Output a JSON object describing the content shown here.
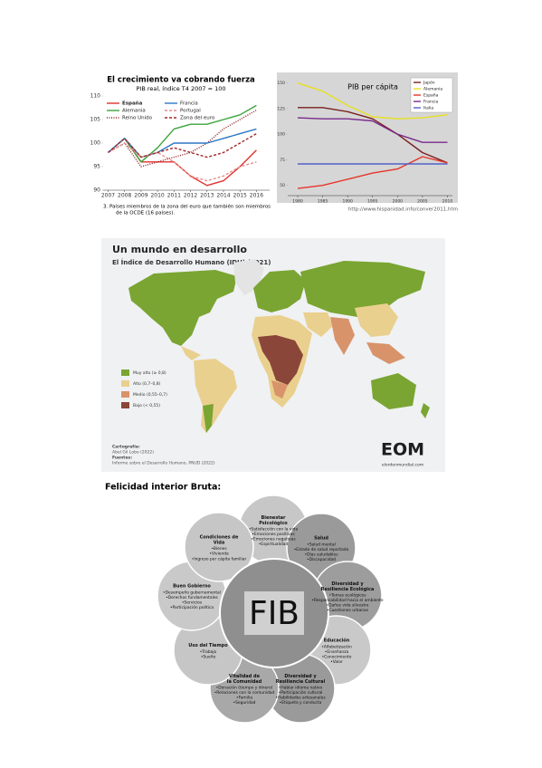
{
  "chart_data": [
    {
      "type": "line",
      "title": "El crecimiento va cobrando fuerza",
      "subtitle": "PIB real, índice T4 2007 = 100",
      "x": [
        2007,
        2008,
        2009,
        2010,
        2011,
        2012,
        2013,
        2014,
        2015,
        2016
      ],
      "xlim": [
        2006.7,
        2016.8
      ],
      "xticks": [
        2007,
        2008,
        2009,
        2010,
        2011,
        2012,
        2013,
        2014,
        2015,
        2016
      ],
      "ylim": [
        90,
        110
      ],
      "yticks": [
        90,
        95,
        100,
        105,
        110
      ],
      "grid": false,
      "series": [
        {
          "name": "España",
          "color": "#e0312e",
          "style": "solid",
          "values": [
            98,
            101,
            96,
            96,
            96,
            93,
            91,
            92,
            95,
            98.5
          ]
        },
        {
          "name": "Alemania",
          "color": "#3aa43a",
          "style": "solid",
          "values": [
            98,
            101,
            96,
            99,
            103,
            104,
            104,
            105,
            106,
            108
          ]
        },
        {
          "name": "Reino Unido",
          "color": "#8b1a1a",
          "style": "dotted",
          "values": [
            98,
            100,
            95,
            96,
            97,
            98,
            100,
            103,
            105,
            107
          ]
        },
        {
          "name": "Francia",
          "color": "#2b77c4",
          "style": "solid",
          "values": [
            98,
            101,
            97,
            98,
            100,
            100,
            100,
            101,
            102,
            103
          ]
        },
        {
          "name": "Portugal",
          "color": "#e88a8a",
          "style": "dashed",
          "values": [
            98,
            100,
            97,
            98,
            96,
            93,
            92,
            93,
            95,
            96
          ]
        },
        {
          "name": "Zona del euro",
          "color": "#a02828",
          "style": "dashed",
          "values": [
            98,
            101,
            97,
            98,
            99,
            98,
            97,
            98,
            100,
            102
          ]
        }
      ],
      "note": [
        "3.  Países miembros de la zona del euro que también son miembros",
        "de la OCDE (16 países)."
      ]
    },
    {
      "type": "line",
      "title": "PIB per cápita",
      "x": [
        1980,
        1985,
        1990,
        1995,
        2000,
        2005,
        2010
      ],
      "xlim": [
        1978,
        2011
      ],
      "xticks": [
        1980,
        1985,
        1990,
        1995,
        2000,
        2005,
        2010
      ],
      "ylim": [
        40,
        155
      ],
      "yticks": [
        50,
        75,
        100,
        125,
        150
      ],
      "grid": false,
      "series": [
        {
          "name": "Japón",
          "color": "#7a1f1f",
          "style": "solid",
          "values": [
            126,
            126,
            122,
            115,
            100,
            82,
            72
          ]
        },
        {
          "name": "Alemania",
          "color": "#e8e020",
          "style": "solid",
          "values": [
            150,
            142,
            128,
            117,
            115,
            116,
            119
          ]
        },
        {
          "name": "España",
          "color": "#e8342a",
          "style": "solid",
          "values": [
            47,
            50,
            56,
            62,
            66,
            78,
            72
          ]
        },
        {
          "name": "Francia",
          "color": "#7a2a8a",
          "style": "solid",
          "values": [
            116,
            115,
            115,
            113,
            100,
            92,
            92
          ]
        },
        {
          "name": "Italia",
          "color": "#5060c8",
          "style": "solid",
          "values": [
            71,
            71,
            71,
            71,
            71,
            71,
            71
          ]
        }
      ],
      "source": "http://www.hispanidad.info/conver2011.htm"
    }
  ],
  "map": {
    "title": "Un mundo en desarrollo",
    "subtitle": "El Índice de Desarrollo Humano (IDH) (2021)",
    "legend": [
      {
        "label": "Muy alto (≥ 0,8)",
        "color": "#7aa532"
      },
      {
        "label": "Alto (0,7–0,8)",
        "color": "#ead08e"
      },
      {
        "label": "Medio (0,55–0,7)",
        "color": "#d8936a"
      },
      {
        "label": "Bajo (< 0,55)",
        "color": "#8a4638"
      }
    ],
    "credits": [
      "Cartografía:",
      "Abel Gil Lobo (2022)",
      "Fuentes:",
      "Informe sobre el Desarrollo Humano, PNUD (2022)"
    ],
    "logo": "EOM",
    "logo_url": "elordenmundial.com"
  },
  "heading": "Felicidad interior Bruta:",
  "diagram": {
    "center": "FIB",
    "nodes": [
      {
        "title": "Bienestar Psicológico",
        "items": [
          "•Satisfacción con la vida",
          "•Emociones positivas",
          "•Emociones negativas",
          "•Espiritualidad"
        ]
      },
      {
        "title": "Salud",
        "items": [
          "•Salud mental",
          "•Estado de salud reportado",
          "•Días saludables",
          "•Discapacidad"
        ]
      },
      {
        "title": "Diversidad y Resiliencia Ecológica",
        "items": [
          "•Temas ecológicos",
          "•Responsabilidad hacia el ambiente",
          "•Daños vida silvestre",
          "•Cuestiones urbanas"
        ]
      },
      {
        "title": "Educación",
        "items": [
          "•Alfabetización",
          "•Enseñanza",
          "•Conocimiento",
          "•Valor"
        ]
      },
      {
        "title": "Diversidad y Resiliencia Cultural",
        "items": [
          "•Hablar idioma nativo",
          "•Participación cultural",
          "•Habilidades artesanales",
          "•Etiqueta y conducta"
        ]
      },
      {
        "title": "Vitalidad de la Comunidad",
        "items": [
          "•Donación (tiempo y dinero)",
          "•Relaciones con la comunidad",
          "•Familia",
          "•Seguridad"
        ]
      },
      {
        "title": "Uso del Tiempo",
        "items": [
          "•Trabajo",
          "•Sueño"
        ]
      },
      {
        "title": "Buen Gobierno",
        "items": [
          "•Desempeño gubernamental",
          "•Derechos fundamentales",
          "•Servicios",
          "•Participación política"
        ]
      },
      {
        "title": "Condiciones de Vida",
        "items": [
          "•Bienes",
          "•Vivienda",
          "•Ingreso per cápita familiar"
        ]
      }
    ]
  }
}
